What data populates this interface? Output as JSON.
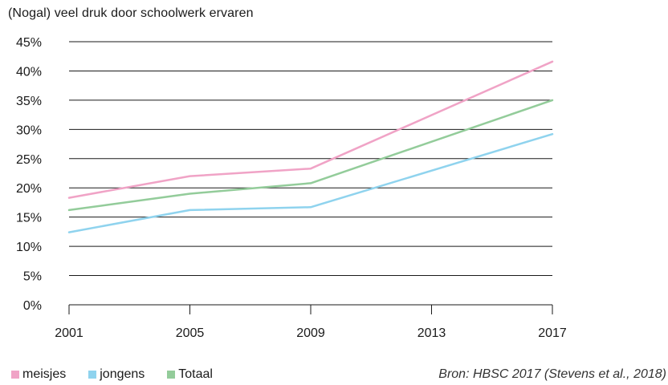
{
  "chart_data": {
    "type": "line",
    "title": "(Nogal) veel druk door schoolwerk ervaren",
    "x": [
      "2001",
      "2005",
      "2009",
      "2013",
      "2017"
    ],
    "x_values": [
      2001,
      2005,
      2009,
      2013,
      2017
    ],
    "xlim": [
      2001,
      2017
    ],
    "ylim": [
      0,
      45
    ],
    "yticks": [
      0,
      5,
      10,
      15,
      20,
      25,
      30,
      35,
      40,
      45
    ],
    "ytick_labels": [
      "0%",
      "5%",
      "10%",
      "15%",
      "20%",
      "25%",
      "30%",
      "35%",
      "40%",
      "45%"
    ],
    "grid": "horizontal",
    "legend_position": "bottom-left",
    "series": [
      {
        "name": "meisjes",
        "color": "#f0a3c6",
        "x": [
          2001,
          2005,
          2009,
          2017
        ],
        "values": [
          18.3,
          22.0,
          23.3,
          41.6
        ]
      },
      {
        "name": "jongens",
        "color": "#8fd3ee",
        "x": [
          2001,
          2005,
          2009,
          2017
        ],
        "values": [
          12.4,
          16.2,
          16.7,
          29.2
        ]
      },
      {
        "name": "Totaal",
        "color": "#93cc9a",
        "x": [
          2001,
          2005,
          2009,
          2017
        ],
        "values": [
          16.2,
          19.0,
          20.8,
          35.0
        ]
      }
    ],
    "source": "Bron: HBSC 2017 (Stevens et al., 2018)"
  }
}
